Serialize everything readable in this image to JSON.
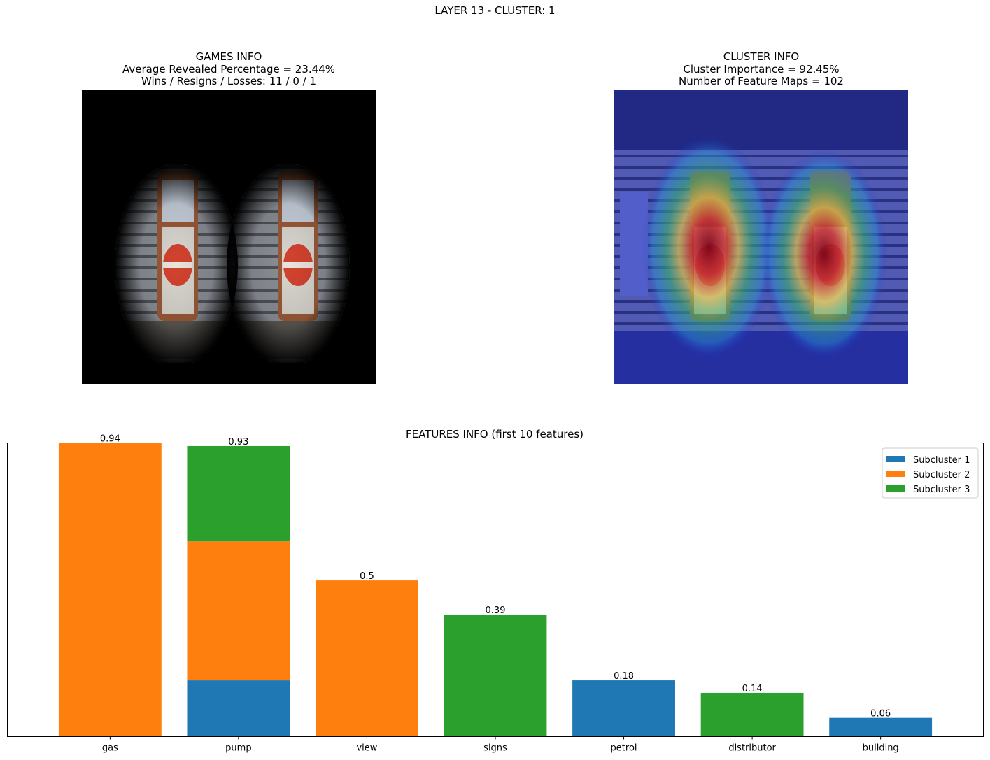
{
  "figure": {
    "suptitle": "LAYER 13 - CLUSTER: 1"
  },
  "games_info": {
    "title": "GAMES INFO",
    "line1": "Average Revealed Percentage = 23.44%",
    "line2": "Wins / Resigns / Losses: 11 / 0 / 1",
    "image_description": "two rusty vintage gas pumps, masked view"
  },
  "cluster_info": {
    "title": "CLUSTER INFO",
    "line1": "Cluster Importance = 92.45%",
    "line2": "Number of Feature Maps = 102",
    "image_description": "two rusty vintage gas pumps with heatmap overlay"
  },
  "chart_data": {
    "type": "bar",
    "stacked": true,
    "title": "FEATURES INFO (first 10 features)",
    "xlabel": "",
    "ylabel": "",
    "categories": [
      "gas",
      "pump",
      "view",
      "signs",
      "petrol",
      "distributor",
      "building"
    ],
    "series": [
      {
        "name": "Subcluster 1",
        "color": "#1f77b4",
        "values": [
          0,
          0.18,
          0,
          0,
          0.18,
          0,
          0.06
        ]
      },
      {
        "name": "Subcluster 2",
        "color": "#ff7f0e",
        "values": [
          0.94,
          0.445,
          0.5,
          0,
          0,
          0,
          0
        ]
      },
      {
        "name": "Subcluster 3",
        "color": "#2ca02c",
        "values": [
          0,
          0.305,
          0,
          0.39,
          0,
          0.14,
          0
        ]
      }
    ],
    "totals": [
      0.94,
      0.93,
      0.5,
      0.39,
      0.18,
      0.14,
      0.06
    ],
    "total_labels": [
      "0.94",
      "0.93",
      "0.5",
      "0.39",
      "0.18",
      "0.14",
      "0.06"
    ],
    "ylim": [
      0,
      0.94
    ],
    "y_ticks_visible": false,
    "grid": false,
    "legend_position": "upper right"
  }
}
